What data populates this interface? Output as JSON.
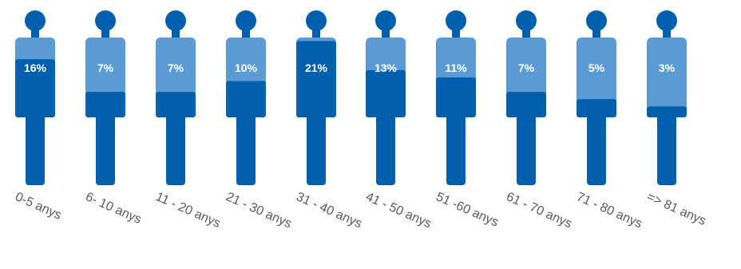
{
  "chart_data": {
    "type": "pictograph",
    "categories": [
      "0-5 anys",
      "6- 10 anys",
      "11 - 20 anys",
      "21 - 30 anys",
      "31 - 40 anys",
      "41 - 50 anys",
      "51 -60 anys",
      "61 - 70 anys",
      "71 - 80 anys",
      "=> 81 anys"
    ],
    "values": [
      16,
      7,
      7,
      10,
      21,
      13,
      11,
      7,
      5,
      3
    ],
    "value_labels": [
      "16%",
      "7%",
      "7%",
      "10%",
      "21%",
      "13%",
      "11%",
      "7%",
      "5%",
      "3%"
    ],
    "unit": "%",
    "colors": {
      "figure_dark": "#0060AD",
      "figure_light": "#5B9BD5",
      "label_text": "#ffffff",
      "category_text": "#595959"
    }
  }
}
